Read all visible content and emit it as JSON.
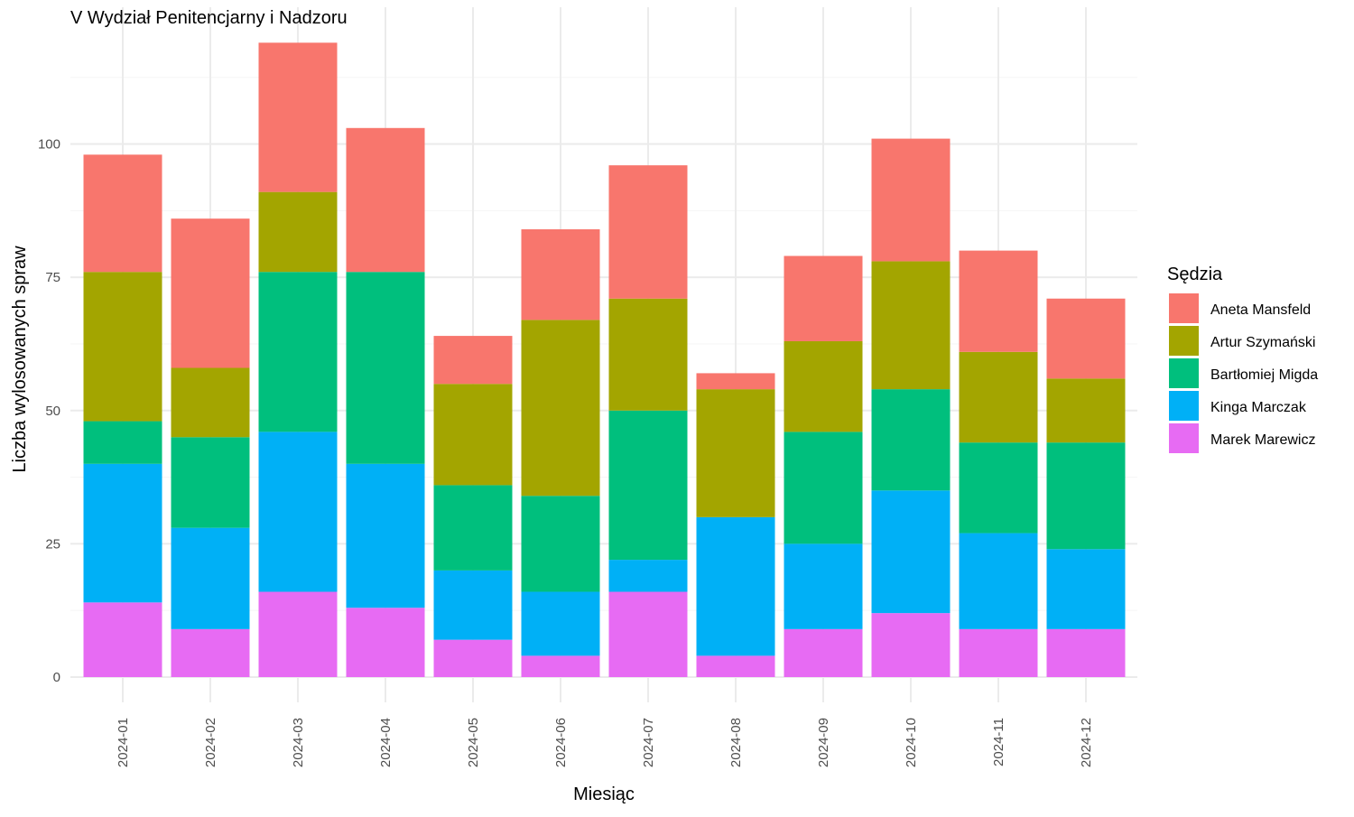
{
  "chart_data": {
    "type": "bar",
    "stacked": true,
    "title": "V Wydział Penitencjarny i Nadzoru",
    "xlabel": "Miesiąc",
    "ylabel": "Liczba wylosowanych spraw",
    "ylim": [
      0,
      120
    ],
    "yticks": [
      0,
      25,
      50,
      75,
      100
    ],
    "grid": true,
    "legend_position": "right",
    "legend_title": "Sędzia",
    "categories": [
      "2024-01",
      "2024-02",
      "2024-03",
      "2024-04",
      "2024-05",
      "2024-06",
      "2024-07",
      "2024-08",
      "2024-09",
      "2024-10",
      "2024-11",
      "2024-12"
    ],
    "series": [
      {
        "name": "Aneta Mansfeld",
        "color": "#F8766D",
        "values": [
          22,
          28,
          28,
          27,
          9,
          17,
          25,
          3,
          16,
          23,
          19,
          15
        ]
      },
      {
        "name": "Artur Szymański",
        "color": "#A3A500",
        "values": [
          28,
          13,
          15,
          0,
          19,
          33,
          21,
          24,
          17,
          24,
          17,
          12
        ]
      },
      {
        "name": "Bartłomiej Migda",
        "color": "#00BF7D",
        "values": [
          8,
          17,
          30,
          36,
          16,
          18,
          28,
          0,
          21,
          19,
          17,
          20
        ]
      },
      {
        "name": "Kinga Marczak",
        "color": "#00B0F6",
        "values": [
          26,
          19,
          30,
          27,
          13,
          12,
          6,
          26,
          16,
          23,
          18,
          15
        ]
      },
      {
        "name": "Marek Marewicz",
        "color": "#E76BF3",
        "values": [
          14,
          9,
          16,
          13,
          7,
          4,
          16,
          4,
          9,
          12,
          9,
          9
        ]
      }
    ]
  }
}
